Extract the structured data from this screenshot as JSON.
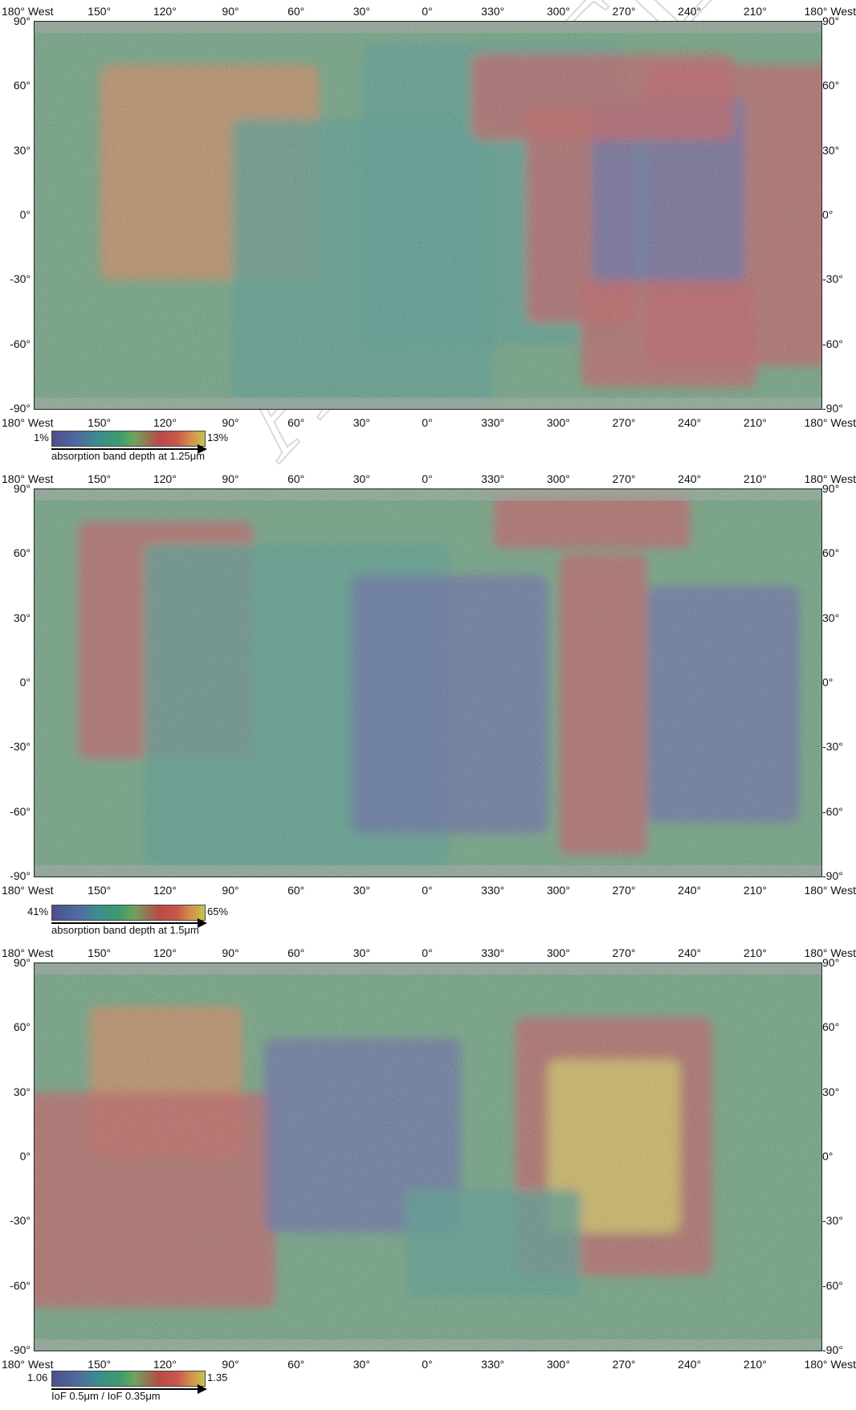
{
  "axes": {
    "lon_labels": [
      "150°",
      "120°",
      "90°",
      "60°",
      "30°",
      "0°",
      "330°",
      "300°",
      "270°",
      "240°",
      "210°"
    ],
    "edge_label": "180° West",
    "lat_labels": [
      "90°",
      "60°",
      "30°",
      "0°",
      "-30°",
      "-60°",
      "-90°"
    ]
  },
  "panels": [
    {
      "legend": {
        "min": "1%",
        "max": "13%",
        "title": "absorption band depth at 1.25μm"
      },
      "regions": [
        {
          "lon": 200,
          "lat": 0,
          "width": 120,
          "height": 140,
          "color": "red"
        },
        {
          "lon": 100,
          "lat": 20,
          "width": 100,
          "height": 100,
          "color": "orange"
        },
        {
          "lon": 30,
          "lat": -20,
          "width": 120,
          "height": 130,
          "color": "teal"
        },
        {
          "lon": 330,
          "lat": 10,
          "width": 120,
          "height": 140,
          "color": "teal"
        },
        {
          "lon": 290,
          "lat": 0,
          "width": 50,
          "height": 100,
          "color": "red"
        },
        {
          "lon": 250,
          "lat": 10,
          "width": 70,
          "height": 90,
          "color": "blue"
        },
        {
          "lon": 280,
          "lat": 55,
          "width": 120,
          "height": 40,
          "color": "red"
        },
        {
          "lon": 250,
          "lat": -55,
          "width": 80,
          "height": 50,
          "color": "red"
        }
      ]
    },
    {
      "legend": {
        "min": "41%",
        "max": "65%",
        "title": "absorption band depth at 1.5μm"
      },
      "regions": [
        {
          "lon": 120,
          "lat": 20,
          "width": 80,
          "height": 110,
          "color": "red"
        },
        {
          "lon": 60,
          "lat": -10,
          "width": 140,
          "height": 150,
          "color": "teal"
        },
        {
          "lon": 350,
          "lat": -10,
          "width": 90,
          "height": 120,
          "color": "blue"
        },
        {
          "lon": 280,
          "lat": -10,
          "width": 40,
          "height": 140,
          "color": "red"
        },
        {
          "lon": 225,
          "lat": -10,
          "width": 70,
          "height": 110,
          "color": "blue"
        },
        {
          "lon": 285,
          "lat": 75,
          "width": 90,
          "height": 25,
          "color": "red"
        }
      ]
    },
    {
      "legend": {
        "min": "1.06",
        "max": "1.35",
        "title": "IoF 0.5μm / IoF 0.35μm"
      },
      "regions": [
        {
          "lon": 120,
          "lat": 35,
          "width": 70,
          "height": 70,
          "color": "orange"
        },
        {
          "lon": 130,
          "lat": -20,
          "width": 120,
          "height": 100,
          "color": "red"
        },
        {
          "lon": 30,
          "lat": 10,
          "width": 90,
          "height": 90,
          "color": "blue"
        },
        {
          "lon": 275,
          "lat": 5,
          "width": 90,
          "height": 120,
          "color": "red"
        },
        {
          "lon": 275,
          "lat": 5,
          "width": 60,
          "height": 80,
          "color": "yellow"
        },
        {
          "lon": 330,
          "lat": -40,
          "width": 80,
          "height": 50,
          "color": "teal"
        }
      ]
    }
  ],
  "colors": {
    "blue": "#4f5a9a",
    "teal": "#3d9081",
    "green": "#4a9a63",
    "red": "#b84a4c",
    "orange": "#c97a48",
    "yellow": "#d3c54c",
    "white": "#ffffff"
  },
  "watermark": "ACCEPTED MANUSCRIPT"
}
